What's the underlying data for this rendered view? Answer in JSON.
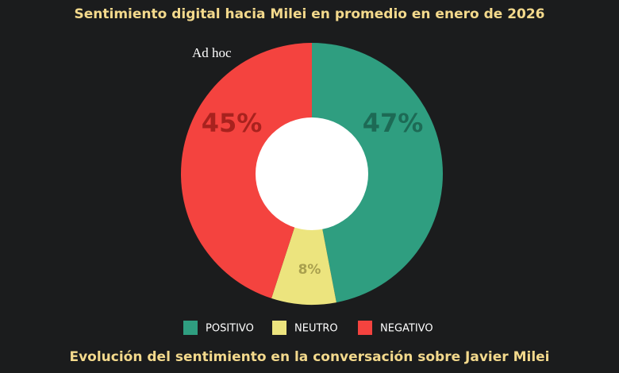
{
  "chart_data": {
    "type": "donut",
    "title": "Sentimiento digital hacia Milei en promedio en enero de 2026",
    "brand": "Ad hoc",
    "categories": [
      "POSITIVO",
      "NEUTRO",
      "NEGATIVO"
    ],
    "values": [
      47,
      8,
      45
    ],
    "value_labels": [
      "47%",
      "8%",
      "45%"
    ],
    "colors": [
      "#2f9e80",
      "#ece47e",
      "#f4433f"
    ],
    "label_colors": [
      "#1d6a55",
      "#a9a04e",
      "#a8221e"
    ],
    "legend": "bottom",
    "subtitle": "Evolución del sentimiento en la conversación sobre Javier Milei"
  }
}
